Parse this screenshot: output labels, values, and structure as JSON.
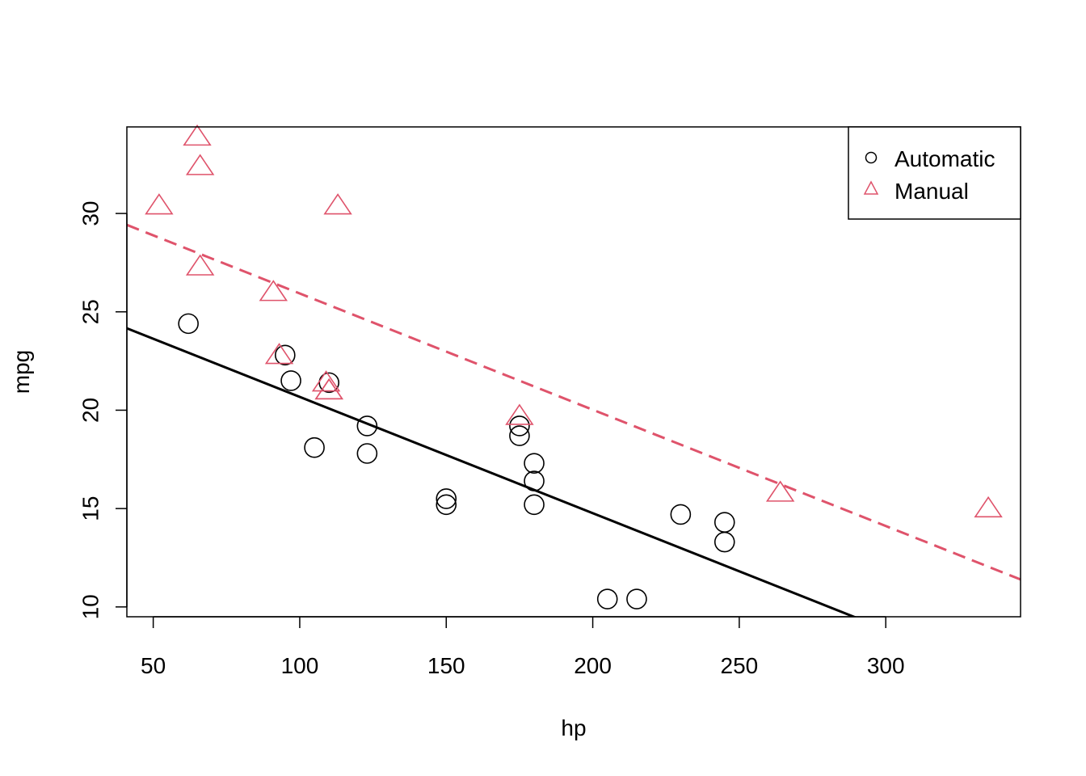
{
  "chart_data": {
    "type": "scatter",
    "title": "",
    "xlabel": "hp",
    "ylabel": "mpg",
    "xlim": [
      41,
      346
    ],
    "ylim": [
      9.5,
      34.4
    ],
    "xticks": [
      50,
      100,
      150,
      200,
      250,
      300
    ],
    "yticks": [
      10,
      15,
      20,
      25,
      30
    ],
    "grid": false,
    "legend": {
      "position": "top-right",
      "entries": [
        "Automatic",
        "Manual"
      ]
    },
    "series": [
      {
        "name": "Automatic",
        "marker": "circle",
        "color": "#000000",
        "points": [
          [
            110,
            21.4
          ],
          [
            175,
            18.7
          ],
          [
            105,
            18.1
          ],
          [
            245,
            14.3
          ],
          [
            62,
            24.4
          ],
          [
            95,
            22.8
          ],
          [
            123,
            19.2
          ],
          [
            123,
            17.8
          ],
          [
            180,
            16.4
          ],
          [
            180,
            17.3
          ],
          [
            180,
            15.2
          ],
          [
            205,
            10.4
          ],
          [
            215,
            10.4
          ],
          [
            230,
            14.7
          ],
          [
            97,
            21.5
          ],
          [
            150,
            15.5
          ],
          [
            150,
            15.2
          ],
          [
            245,
            13.3
          ],
          [
            175,
            19.2
          ]
        ],
        "fit_line": {
          "intercept": 26.585,
          "slope": -0.0591,
          "style": "solid"
        }
      },
      {
        "name": "Manual",
        "marker": "triangle",
        "color": "#DF536B",
        "points": [
          [
            110,
            21.0
          ],
          [
            110,
            21.0
          ],
          [
            93,
            22.8
          ],
          [
            66,
            32.4
          ],
          [
            52,
            30.4
          ],
          [
            65,
            33.9
          ],
          [
            66,
            27.3
          ],
          [
            91,
            26.0
          ],
          [
            113,
            30.4
          ],
          [
            264,
            15.8
          ],
          [
            175,
            19.7
          ],
          [
            335,
            15.0
          ],
          [
            109,
            21.4
          ]
        ],
        "fit_line": {
          "intercept": 31.843,
          "slope": -0.0591,
          "style": "dashed"
        }
      }
    ]
  }
}
